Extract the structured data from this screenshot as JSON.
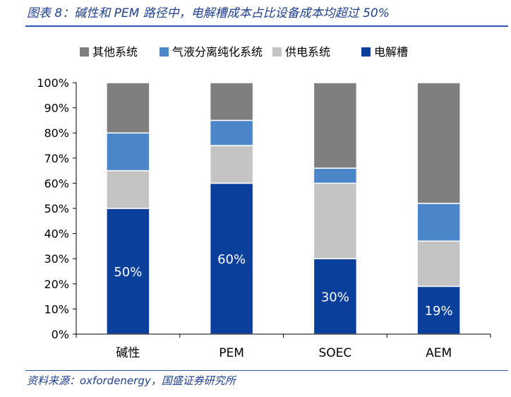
{
  "title": "图表 8：碱性和 PEM 路径中，电解槽成本占比设备成本均超过 50%",
  "source": "资料来源：oxfordenergy，国盛证券研究所",
  "chart_data": {
    "type": "bar",
    "stacked": true,
    "categories": [
      "碱性",
      "PEM",
      "SOEC",
      "AEM"
    ],
    "ylim": [
      0,
      100
    ],
    "yticks": [
      0,
      10,
      20,
      30,
      40,
      50,
      60,
      70,
      80,
      90,
      100
    ],
    "ytick_labels": [
      "0%",
      "10%",
      "20%",
      "30%",
      "40%",
      "50%",
      "60%",
      "70%",
      "80%",
      "90%",
      "100%"
    ],
    "legend_position": "top",
    "series": [
      {
        "name": "电解槽",
        "color": "#0a3f9c",
        "values": [
          50,
          60,
          30,
          19
        ],
        "labels": [
          "50%",
          "60%",
          "30%",
          "19%"
        ]
      },
      {
        "name": "供电系统",
        "color": "#c4c4c4",
        "values": [
          15,
          15,
          30,
          18
        ]
      },
      {
        "name": "气液分离纯化系统",
        "color": "#4a86c8",
        "values": [
          15,
          10,
          6,
          15
        ]
      },
      {
        "name": "其他系统",
        "color": "#7f7f7f",
        "values": [
          20,
          15,
          34,
          48
        ]
      }
    ],
    "legend_order": [
      "其他系统",
      "气液分离纯化系统",
      "供电系统",
      "电解槽"
    ]
  }
}
